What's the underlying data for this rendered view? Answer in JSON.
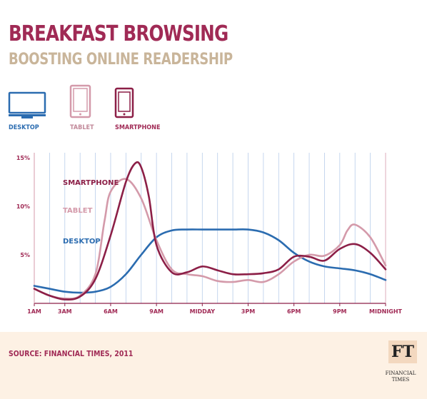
{
  "header": {
    "title": "BREAKFAST BROWSING",
    "subtitle": "BOOSTING ONLINE READERSHIP"
  },
  "legend": [
    {
      "label": "DESKTOP",
      "icon": "desktop-icon",
      "color": "#2b6cb0"
    },
    {
      "label": "TABLET",
      "icon": "tablet-icon",
      "color": "#d49aaa"
    },
    {
      "label": "SMARTPHONE",
      "icon": "smartphone-icon",
      "color": "#8c1f47"
    }
  ],
  "footer": {
    "source": "SOURCE: FINANCIAL TIMES, 2011",
    "logo_text": "FT",
    "logo_name": "FINANCIAL TIMES"
  },
  "colors": {
    "title": "#a02a55",
    "subtitle": "#c9b59a",
    "desktop": "#2b6cb0",
    "tablet": "#d49aaa",
    "smartphone": "#8c1f47",
    "grid": "#b8cdea",
    "footer_bg": "#fdf1e4"
  },
  "chart_data": {
    "type": "line",
    "x_tick_labels": [
      "1AM",
      "3AM",
      "6AM",
      "9AM",
      "MIDDAY",
      "3PM",
      "6PM",
      "9PM",
      "MIDNIGHT"
    ],
    "x_tick_hours": [
      1,
      3,
      6,
      9,
      12,
      15,
      18,
      21,
      24
    ],
    "y_tick_labels": [
      "5%",
      "10%",
      "15%"
    ],
    "y_ticks": [
      5,
      10,
      15
    ],
    "ylim": [
      0,
      15.5
    ],
    "xlim": [
      1,
      24
    ],
    "grid": "vertical lines every hour",
    "series": [
      {
        "name": "SMARTPHONE",
        "x": [
          1,
          2,
          3,
          4,
          5,
          6,
          7,
          7.6,
          8,
          8.5,
          9,
          10,
          11,
          12,
          13,
          14,
          15,
          16,
          17,
          18,
          19,
          20,
          21,
          22,
          23,
          24
        ],
        "y": [
          1.5,
          0.8,
          0.4,
          0.7,
          2.5,
          7.0,
          12.5,
          14.4,
          14.0,
          11.0,
          6.0,
          3.2,
          3.2,
          3.8,
          3.4,
          3.0,
          3.0,
          3.1,
          3.5,
          4.8,
          4.8,
          4.4,
          5.6,
          6.1,
          5.2,
          3.5
        ]
      },
      {
        "name": "TABLET",
        "x": [
          1,
          2,
          3,
          4,
          5,
          5.6,
          6,
          7,
          8,
          9,
          10,
          11,
          12,
          13,
          14,
          15,
          16,
          17,
          18,
          19,
          20,
          21,
          21.5,
          22,
          23,
          24
        ],
        "y": [
          1.5,
          0.8,
          0.5,
          0.8,
          3.0,
          8.5,
          11.5,
          12.8,
          10.8,
          6.5,
          3.5,
          3.0,
          2.8,
          2.3,
          2.2,
          2.4,
          2.2,
          3.0,
          4.3,
          5.0,
          4.9,
          6.0,
          7.5,
          8.1,
          6.8,
          3.9
        ]
      },
      {
        "name": "DESKTOP",
        "x": [
          1,
          2,
          3,
          4,
          5,
          6,
          7,
          8,
          9,
          10,
          11,
          12,
          13,
          14,
          15,
          16,
          17,
          18,
          19,
          20,
          21,
          22,
          23,
          24
        ],
        "y": [
          1.8,
          1.5,
          1.2,
          1.1,
          1.2,
          1.7,
          3.0,
          5.0,
          6.8,
          7.5,
          7.6,
          7.6,
          7.6,
          7.6,
          7.6,
          7.3,
          6.5,
          5.2,
          4.3,
          3.8,
          3.6,
          3.4,
          3.0,
          2.4
        ]
      }
    ],
    "series_labels": [
      "SMARTPHONE",
      "TABLET",
      "DESKTOP"
    ]
  }
}
